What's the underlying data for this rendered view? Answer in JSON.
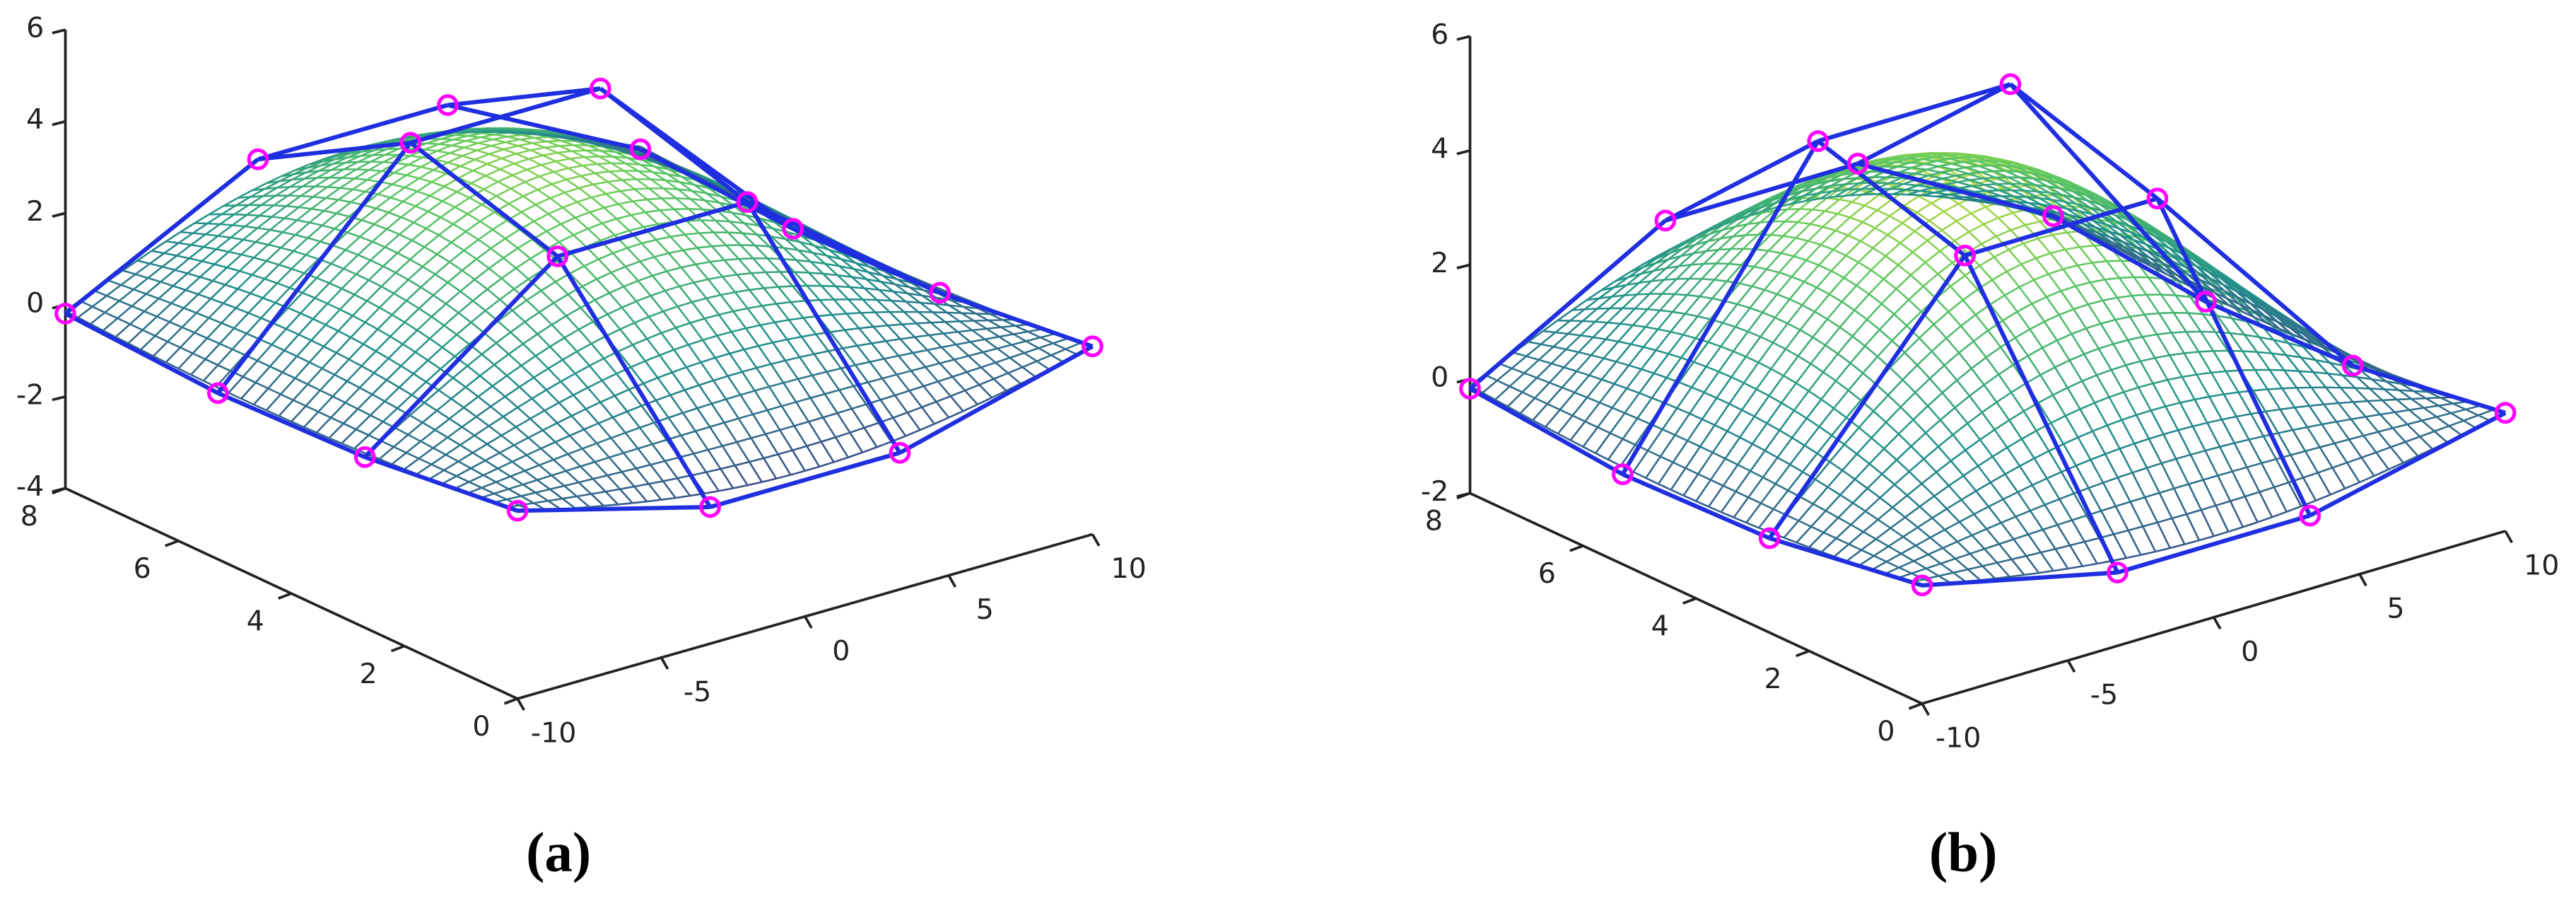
{
  "chart_data": [
    {
      "type": "surface",
      "caption": "(a)",
      "xlim": [
        -10,
        10
      ],
      "ylim": [
        0,
        8
      ],
      "zlim": [
        -4,
        6
      ],
      "xticks": [
        -10,
        -5,
        0,
        5,
        10
      ],
      "yticks": [
        0,
        2,
        4,
        6,
        8
      ],
      "zticks": [
        -4,
        -2,
        0,
        2,
        4,
        6
      ]
    },
    {
      "type": "surface",
      "caption": "(b)",
      "xlim": [
        -10,
        10
      ],
      "ylim": [
        0,
        8
      ],
      "zlim": [
        -2,
        6
      ],
      "xticks": [
        -10,
        -5,
        0,
        5,
        10
      ],
      "yticks": [
        0,
        2,
        4,
        6,
        8
      ],
      "zticks": [
        -2,
        0,
        2,
        4,
        6
      ]
    }
  ]
}
